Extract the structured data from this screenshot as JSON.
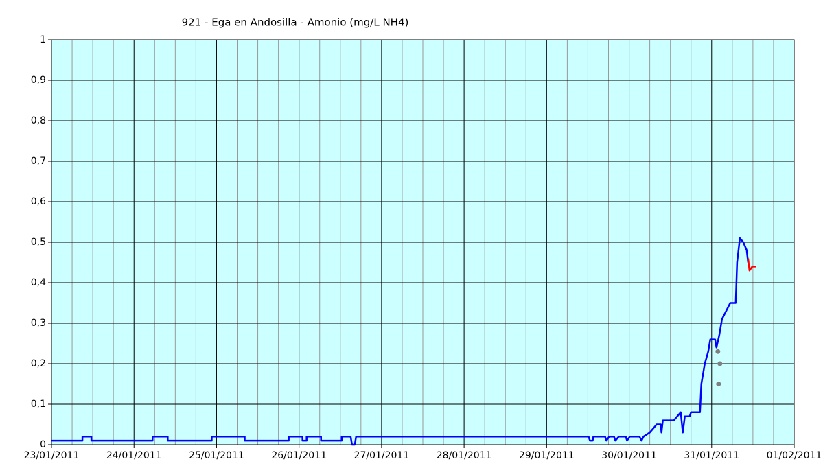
{
  "chart_data": {
    "type": "line",
    "title": "921 - Ega en Andosilla - Amonio (mg/L NH4)",
    "xlim": [
      "2011-01-23T00:00",
      "2011-02-01T00:00"
    ],
    "xticks": [
      {
        "value": "2011-01-23T00:00",
        "label": "23/01/2011"
      },
      {
        "value": "2011-01-24T00:00",
        "label": "24/01/2011"
      },
      {
        "value": "2011-01-25T00:00",
        "label": "25/01/2011"
      },
      {
        "value": "2011-01-26T00:00",
        "label": "26/01/2011"
      },
      {
        "value": "2011-01-27T00:00",
        "label": "27/01/2011"
      },
      {
        "value": "2011-01-28T00:00",
        "label": "28/01/2011"
      },
      {
        "value": "2011-01-29T00:00",
        "label": "29/01/2011"
      },
      {
        "value": "2011-01-30T00:00",
        "label": "30/01/2011"
      },
      {
        "value": "2011-01-31T00:00",
        "label": "31/01/2011"
      },
      {
        "value": "2011-02-01T00:00",
        "label": "01/02/2011"
      }
    ],
    "ylim": [
      0,
      1
    ],
    "yticks": [
      0,
      {
        "value": 0.1,
        "label": "0,1"
      },
      {
        "value": 0.2,
        "label": "0,2"
      },
      {
        "value": 0.3,
        "label": "0,3"
      },
      {
        "value": 0.4,
        "label": "0,4"
      },
      {
        "value": 0.5,
        "label": "0,5"
      },
      {
        "value": 0.6,
        "label": "0,6"
      },
      {
        "value": 0.7,
        "label": "0,7"
      },
      {
        "value": 0.8,
        "label": "0,8"
      },
      {
        "value": 0.9,
        "label": "0,9"
      },
      1
    ],
    "grid": true,
    "background": "#ccffff",
    "series": [
      {
        "color": "#0000ff",
        "style": "line",
        "x": [
          "2011-01-23T00:00",
          "2011-01-23T09:00",
          "2011-01-23T09:00",
          "2011-01-23T11:36",
          "2011-01-23T11:36",
          "2011-01-24T05:24",
          "2011-01-24T05:24",
          "2011-01-24T09:48",
          "2011-01-24T09:48",
          "2011-01-24T22:36",
          "2011-01-24T22:36",
          "2011-01-25T08:12",
          "2011-01-25T08:12",
          "2011-01-25T21:00",
          "2011-01-25T21:00",
          "2011-01-26T01:00",
          "2011-01-26T01:00",
          "2011-01-26T02:12",
          "2011-01-26T02:12",
          "2011-01-26T06:24",
          "2011-01-26T06:24",
          "2011-01-26T12:24",
          "2011-01-26T12:24",
          "2011-01-26T15:00",
          "2011-01-26T15:24",
          "2011-01-26T16:12",
          "2011-01-26T16:36",
          "2011-01-29T12:12",
          "2011-01-29T12:36",
          "2011-01-29T13:24",
          "2011-01-29T13:36",
          "2011-01-29T17:00",
          "2011-01-29T17:24",
          "2011-01-29T18:12",
          "2011-01-29T19:36",
          "2011-01-29T20:00",
          "2011-01-29T21:00",
          "2011-01-29T23:00",
          "2011-01-29T23:24",
          "2011-01-30T00:12",
          "2011-01-30T03:00",
          "2011-01-30T03:36",
          "2011-01-30T04:12",
          "2011-01-30T06:00",
          "2011-01-30T08:00",
          "2011-01-30T09:12",
          "2011-01-30T09:24",
          "2011-01-30T09:48",
          "2011-01-30T13:00",
          "2011-01-30T14:00",
          "2011-01-30T15:00",
          "2011-01-30T15:36",
          "2011-01-30T16:12",
          "2011-01-30T17:36",
          "2011-01-30T18:00",
          "2011-01-30T20:36",
          "2011-01-30T21:00",
          "2011-01-30T22:00",
          "2011-01-30T23:00",
          "2011-01-30T23:36",
          "2011-01-31T01:00",
          "2011-01-31T01:24",
          "2011-01-31T02:12",
          "2011-01-31T03:00",
          "2011-01-31T04:12",
          "2011-01-31T05:24",
          "2011-01-31T07:00",
          "2011-01-31T07:24",
          "2011-01-31T08:12",
          "2011-01-31T09:12",
          "2011-01-31T10:12",
          "2011-01-31T10:36"
        ],
        "values": [
          0.01,
          0.01,
          0.02,
          0.02,
          0.01,
          0.01,
          0.02,
          0.02,
          0.01,
          0.01,
          0.02,
          0.02,
          0.01,
          0.01,
          0.02,
          0.02,
          0.01,
          0.01,
          0.02,
          0.02,
          0.01,
          0.01,
          0.02,
          0.02,
          0,
          0,
          0.02,
          0.02,
          0.01,
          0.01,
          0.02,
          0.02,
          0.01,
          0.02,
          0.02,
          0.01,
          0.02,
          0.02,
          0.01,
          0.02,
          0.02,
          0.01,
          0.02,
          0.03,
          0.05,
          0.05,
          0.03,
          0.06,
          0.06,
          0.07,
          0.08,
          0.03,
          0.07,
          0.07,
          0.08,
          0.08,
          0.15,
          0.2,
          0.23,
          0.26,
          0.26,
          0.24,
          0.27,
          0.31,
          0.33,
          0.35,
          0.35,
          0.45,
          0.51,
          0.5,
          0.48,
          0.45
        ]
      },
      {
        "color": "#ff0000",
        "style": "line",
        "x": [
          "2011-01-31T10:36",
          "2011-01-31T11:00",
          "2011-01-31T11:48",
          "2011-01-31T13:00"
        ],
        "values": [
          0.46,
          0.43,
          0.44,
          0.44
        ]
      },
      {
        "color": "#808080",
        "style": "markers",
        "x": [
          "2011-01-31T01:48",
          "2011-01-31T02:24",
          "2011-01-31T02:00"
        ],
        "values": [
          0.23,
          0.2,
          0.15
        ]
      }
    ]
  }
}
